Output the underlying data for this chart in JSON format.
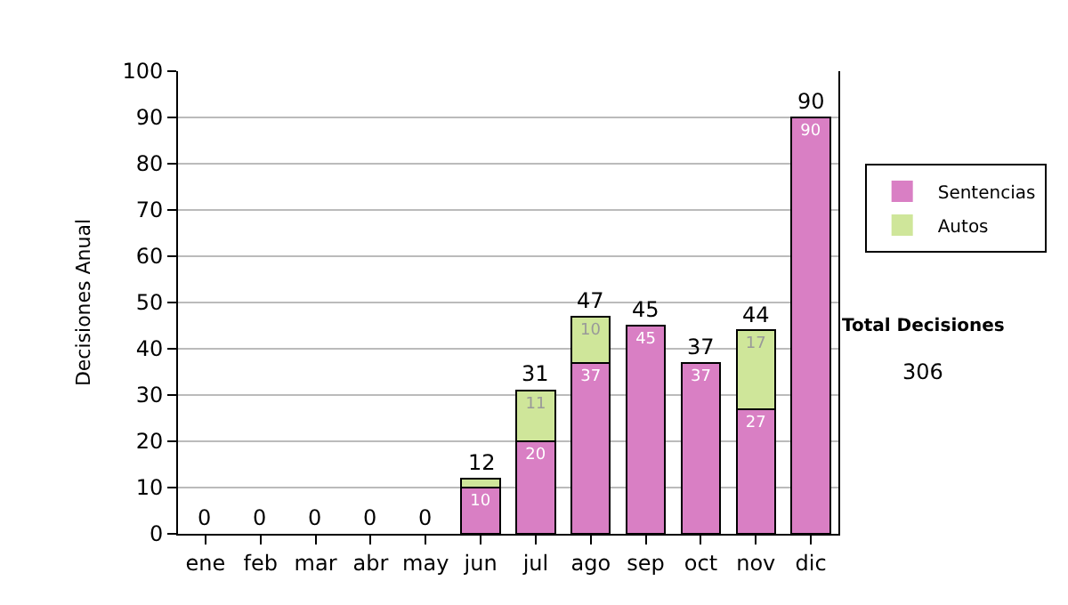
{
  "chart_data": {
    "type": "bar",
    "stacked": true,
    "ylabel": "Decisiones Anual",
    "categories": [
      "ene",
      "feb",
      "mar",
      "abr",
      "may",
      "jun",
      "jul",
      "ago",
      "sep",
      "oct",
      "nov",
      "dic"
    ],
    "series": [
      {
        "name": "Sentencias",
        "color": "#d97fc4",
        "values": [
          0,
          0,
          0,
          0,
          0,
          10,
          20,
          37,
          45,
          37,
          27,
          90
        ],
        "value_labels": [
          null,
          null,
          null,
          null,
          null,
          "10",
          "20",
          "37",
          "45",
          "37",
          "27",
          "90"
        ]
      },
      {
        "name": "Autos",
        "color": "#cfe69a",
        "values": [
          0,
          0,
          0,
          0,
          0,
          2,
          11,
          10,
          0,
          0,
          17,
          0
        ],
        "value_labels": [
          null,
          null,
          null,
          null,
          null,
          null,
          "11",
          "10",
          null,
          null,
          "17",
          null
        ]
      }
    ],
    "totals": [
      "0",
      "0",
      "0",
      "0",
      "0",
      "12",
      "31",
      "47",
      "45",
      "37",
      "44",
      "90"
    ],
    "ylim": [
      0,
      100
    ],
    "yticks": [
      0,
      10,
      20,
      30,
      40,
      50,
      60,
      70,
      80,
      90,
      100
    ],
    "grid": "y",
    "legend": "right",
    "annotations": [
      "Total Decisiones",
      "306"
    ]
  }
}
